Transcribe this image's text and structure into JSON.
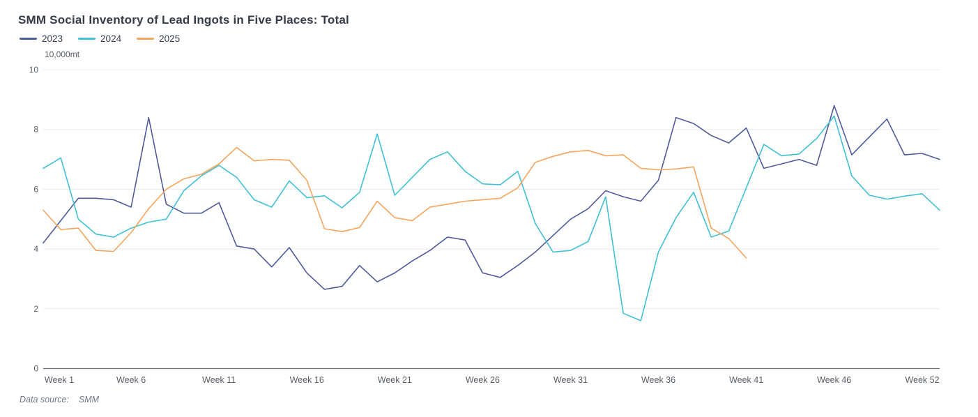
{
  "header": {
    "title": "SMM Social Inventory of Lead Ingots in Five Places: Total"
  },
  "footer": {
    "label": "Data source:",
    "value": "SMM"
  },
  "chart_data": {
    "type": "line",
    "title": "SMM Social Inventory of Lead Ingots in Five Places: Total",
    "unit_label": "10,000mt",
    "xlabel": "",
    "ylabel": "10,000mt",
    "ylim": [
      0,
      10
    ],
    "y_ticks": [
      0,
      2,
      4,
      6,
      8,
      10
    ],
    "x_tick_weeks": [
      1,
      6,
      11,
      16,
      21,
      26,
      31,
      36,
      41,
      46,
      52
    ],
    "x_tick_labels": [
      "Week 1",
      "Week 6",
      "Week 11",
      "Week 16",
      "Week 21",
      "Week 26",
      "Week 31",
      "Week 36",
      "Week 41",
      "Week 46",
      "Week 52"
    ],
    "weeks_total": 52,
    "grid_on": true,
    "legend_position": "top-left",
    "colors": {
      "grid_line": "#ECECF0",
      "axis_line": "#6E7079",
      "tick_label": "#575D66",
      "series_2023": "#4E5B9B",
      "series_2024": "#3FC0D5",
      "series_2025": "#F5A45C"
    },
    "series": [
      {
        "name": "2023",
        "color": "#4E5B9B",
        "start_week": 1,
        "values": [
          4.2,
          4.95,
          5.7,
          5.7,
          5.65,
          5.4,
          8.4,
          5.5,
          5.2,
          5.2,
          5.55,
          4.1,
          4.0,
          3.4,
          4.05,
          3.2,
          2.65,
          2.75,
          3.45,
          2.9,
          3.2,
          3.6,
          3.95,
          4.4,
          4.3,
          3.2,
          3.05,
          3.45,
          3.9,
          4.45,
          5.0,
          5.35,
          5.95,
          5.75,
          5.6,
          6.3,
          8.4,
          8.2,
          7.8,
          7.55,
          8.05,
          6.7,
          6.85,
          7.0,
          6.8,
          8.8,
          7.15,
          7.75,
          8.35,
          7.15,
          7.2,
          7.0
        ]
      },
      {
        "name": "2024",
        "color": "#3FC0D5",
        "start_week": 1,
        "values": [
          6.7,
          7.05,
          5.0,
          4.5,
          4.4,
          4.7,
          4.9,
          5.0,
          5.95,
          6.45,
          6.8,
          6.4,
          5.65,
          5.4,
          6.28,
          5.72,
          5.78,
          5.38,
          5.9,
          7.85,
          5.8,
          6.4,
          7.0,
          7.25,
          6.6,
          6.18,
          6.15,
          6.6,
          4.85,
          3.9,
          3.95,
          4.25,
          5.75,
          1.85,
          1.6,
          3.9,
          5.05,
          5.9,
          4.4,
          4.6,
          6.05,
          7.5,
          7.12,
          7.18,
          7.7,
          8.45,
          6.45,
          5.8,
          5.67,
          5.77,
          5.85,
          5.3
        ]
      },
      {
        "name": "2025",
        "color": "#F5A45C",
        "start_week": 1,
        "values": [
          5.3,
          4.65,
          4.7,
          3.95,
          3.92,
          4.55,
          5.35,
          6.0,
          6.35,
          6.5,
          6.85,
          7.4,
          6.95,
          7.0,
          6.97,
          6.3,
          4.68,
          4.58,
          4.72,
          5.6,
          5.05,
          4.95,
          5.4,
          5.5,
          5.6,
          5.65,
          5.7,
          6.05,
          6.9,
          7.1,
          7.25,
          7.3,
          7.12,
          7.15,
          6.7,
          6.65,
          6.68,
          6.75,
          4.7,
          4.35,
          3.7
        ]
      }
    ]
  }
}
